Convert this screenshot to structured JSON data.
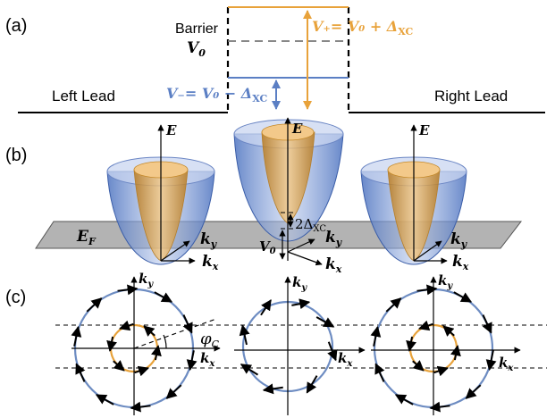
{
  "panels": {
    "a": "(a)",
    "b": "(b)",
    "c": "(c)"
  },
  "panel_a": {
    "barrier_label": "Barrier",
    "v0_main": "V",
    "v0_sub": "0",
    "vplus_expr": "V₊= V₀ + Δ",
    "vplus_sub": "XC",
    "vminus_expr": "V₋= V₀ − Δ",
    "vminus_sub": "XC",
    "left_lead": "Left Lead",
    "right_lead": "Right Lead"
  },
  "panel_b": {
    "energy_axis": "E",
    "fermi_main": "E",
    "fermi_sub": "F",
    "ky_main": "k",
    "ky_sub": "y",
    "kx_main": "k",
    "kx_sub": "x",
    "gap_text": "2Δ",
    "gap_sub": "XC",
    "v0_main": "V",
    "v0_sub": "0"
  },
  "panel_c": {
    "ky_main": "k",
    "ky_sub": "y",
    "kx_main": "k",
    "kx_sub": "x",
    "angle_main": "φ",
    "angle_sub": "C"
  },
  "colors": {
    "orange": "#e8a23a",
    "blue": "#5b7fc4",
    "plane": "#8c8c8c",
    "circle": "#6d8cc2"
  }
}
